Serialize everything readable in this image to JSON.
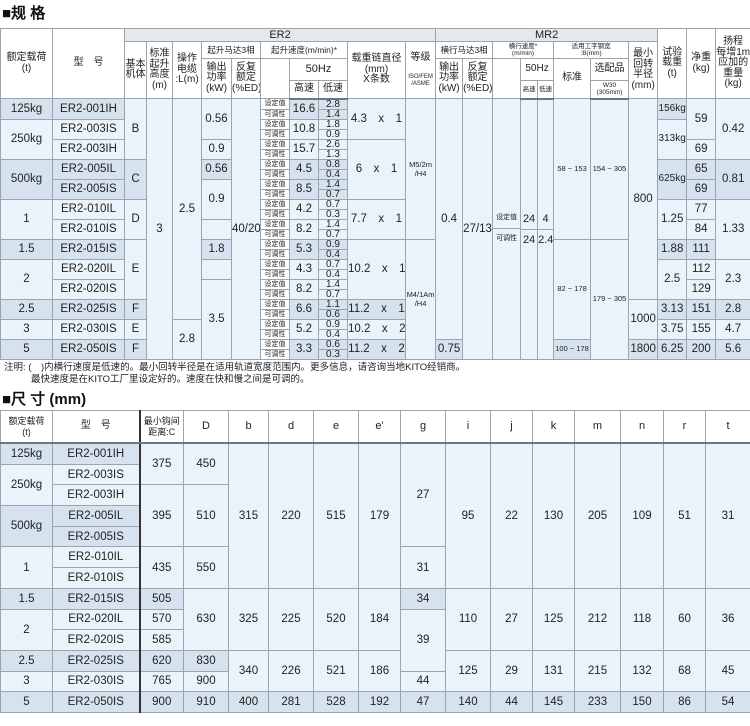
{
  "spec": {
    "title": "■规 格",
    "headers": {
      "capacity": "额定载荷\n(t)",
      "model": "型　号",
      "er2": "ER2",
      "mr2": "MR2",
      "body": "基本\n机体",
      "lift": "标准\n起升\n高度\n(m)",
      "cable": "操作\n电缆\n:L(m)",
      "hoist_motor": "起升马达3相",
      "output": "输出\n功率\n(kW)",
      "duty": "反复\n额定\n(%ED)",
      "hoist_speed": "起升速度(m/min)*",
      "hz": "50Hz",
      "high": "高速",
      "low": "低速",
      "chain": "载重链直径\n(mm)\nX条数",
      "grade": "等级",
      "grade_std": "ISO/FEM\n/ASME",
      "trav_motor": "横行马达3相",
      "trav_speed": "横行速度*\n(m/min)",
      "flange": "适用工字钢宽\n:B(mm)",
      "std": "标准",
      "opt": "选配品",
      "opt_sub": "W30\n(305mm)",
      "radius": "最小\n回转\n半径\n(mm)",
      "test_load": "试验\n载重\n(t)",
      "weight": "净重\n(kg)",
      "per_m": "扬程\n每增1m\n应加的\n重量\n(kg)"
    },
    "speed_labels": [
      "设定值",
      "可调性"
    ],
    "columns": {
      "capacity": [
        "125kg",
        "250kg",
        null,
        "500kg",
        null,
        "1",
        null,
        "1.5",
        "2",
        null,
        "2.5",
        "3",
        "5"
      ],
      "model": [
        "ER2-001IH",
        "ER2-003IS",
        "ER2-003IH",
        "ER2-005IL",
        "ER2-005IS",
        "ER2-010IL",
        "ER2-010IS",
        "ER2-015IS",
        "ER2-020IL",
        "ER2-020IS",
        "ER2-025IS",
        "ER2-030IS",
        "ER2-050IS"
      ],
      "body": [
        "B",
        null,
        null,
        "C",
        null,
        "D",
        null,
        "E",
        null,
        null,
        "F",
        "E",
        "F"
      ],
      "lift_height": [
        "3",
        null,
        null,
        null,
        null,
        null,
        null,
        null,
        null,
        null,
        null,
        null,
        null
      ],
      "cable": [
        "2.5",
        null,
        null,
        null,
        null,
        null,
        null,
        null,
        null,
        null,
        null,
        "2.8",
        null
      ],
      "hoist_power": [
        "0.56",
        null,
        "0.9",
        "0.56",
        "0.9",
        null,
        "",
        "1.8",
        "",
        "3.5",
        null,
        null,
        null
      ],
      "hoist_duty": [
        "40/20",
        null,
        null,
        null,
        null,
        null,
        null,
        null,
        null,
        null,
        null,
        null,
        null
      ],
      "hoist_speed_high": [
        "16.6",
        "10.8",
        "15.7",
        "4.5",
        "8.5",
        "4.2",
        "8.2",
        "5.3",
        "4.3",
        "8.2",
        "6.6",
        "5.2",
        "3.3"
      ],
      "hoist_speed_low_set": [
        "2.8",
        "1.8",
        "2.6",
        "0.8",
        "1.4",
        "0.7",
        "1.4",
        "0.9",
        "0.7",
        "1.4",
        "1.1",
        "0.9",
        "0.6"
      ],
      "hoist_speed_low_adj": [
        "1.4",
        "0.9",
        "1.3",
        "0.4",
        "0.7",
        "0.3",
        "0.7",
        "0.4",
        "0.4",
        "0.7",
        "0.6",
        "0.4",
        "0.3"
      ],
      "chain": [
        "4.3　x　1",
        null,
        "6　x　1",
        null,
        null,
        "7.7　x　1",
        null,
        "10.2　x　1",
        null,
        null,
        "11.2　x　1",
        "10.2　x　2",
        "11.2　x　2"
      ],
      "grade": [
        "M5/2m\n/H4",
        null,
        null,
        null,
        null,
        null,
        null,
        "M4/1Am\n/H4",
        null,
        null,
        null,
        null,
        null
      ],
      "trav_power": [
        "0.4",
        null,
        null,
        null,
        null,
        null,
        null,
        null,
        null,
        null,
        null,
        null,
        "0.75"
      ],
      "trav_duty": [
        "27/13",
        null,
        null,
        null,
        null,
        null,
        null,
        null,
        null,
        null,
        null,
        null,
        null
      ],
      "flange_std": [
        "58 ~ 153",
        null,
        null,
        null,
        null,
        null,
        null,
        "82 ~ 178",
        null,
        null,
        null,
        null,
        "100 ~ 178"
      ],
      "flange_opt": [
        "154 ~ 305",
        null,
        null,
        null,
        null,
        null,
        null,
        "179 ~ 305",
        null,
        null,
        null,
        null,
        null
      ],
      "min_radius": [
        "800",
        null,
        null,
        null,
        null,
        null,
        null,
        null,
        null,
        null,
        "1000",
        null,
        "1800"
      ],
      "test_load": [
        "156kg",
        "313kg",
        null,
        "625kg",
        null,
        "1.25",
        null,
        "1.88",
        "2.5",
        null,
        "3.13",
        "3.75",
        "6.25"
      ],
      "weight": [
        "59",
        null,
        "69",
        "65",
        "69",
        "77",
        "84",
        "111",
        "112",
        "129",
        "151",
        "155",
        "200"
      ],
      "per_m": [
        "0.42",
        null,
        null,
        "0.81",
        null,
        "1.33",
        null,
        null,
        "2.3",
        null,
        "2.8",
        "4.7",
        "5.6"
      ]
    },
    "trav_speed": {
      "set": {
        "label": "设定值",
        "high": "24",
        "low": "4"
      },
      "adj": {
        "label": "可调性",
        "high": "24",
        "low": "2.4"
      }
    }
  },
  "note": {
    "line1": "注明: (　)内横行速度是低速的。最小回转半径是在适用轨道宽度范围内。更多信息，请咨询当地KITO经销商。",
    "line2": "最快速度是在KITO工厂里设定好的。速度在快和慢之间是可调的。"
  },
  "dims": {
    "title": "■尺 寸 (mm)",
    "headers": {
      "capacity": "额定载荷\n(t)",
      "model": "型　号",
      "c": "最小钩间\n距离:C",
      "D": "D",
      "b": "b",
      "d": "d",
      "e": "e",
      "e2": "e'",
      "g": "g",
      "i": "i",
      "j": "j",
      "k": "k",
      "m": "m",
      "n": "n",
      "r": "r",
      "t": "t"
    },
    "columns": {
      "capacity": [
        "125kg",
        "250kg",
        null,
        "500kg",
        null,
        "1",
        null,
        "1.5",
        "2",
        null,
        "2.5",
        "3",
        "5"
      ],
      "model": [
        "ER2-001IH",
        "ER2-003IS",
        "ER2-003IH",
        "ER2-005IL",
        "ER2-005IS",
        "ER2-010IL",
        "ER2-010IS",
        "ER2-015IS",
        "ER2-020IL",
        "ER2-020IS",
        "ER2-025IS",
        "ER2-030IS",
        "ER2-050IS"
      ],
      "c": [
        "375",
        null,
        "395",
        null,
        null,
        "435",
        null,
        "505",
        "570",
        "585",
        "620",
        "765",
        "900"
      ],
      "D": [
        "450",
        null,
        "510",
        null,
        null,
        "550",
        null,
        "630",
        null,
        null,
        "830",
        "900",
        "910"
      ],
      "b": [
        "315",
        null,
        null,
        null,
        null,
        null,
        null,
        "325",
        null,
        null,
        "340",
        null,
        "400"
      ],
      "d": [
        "220",
        null,
        null,
        null,
        null,
        null,
        null,
        "225",
        null,
        null,
        "226",
        null,
        "281"
      ],
      "e": [
        "515",
        null,
        null,
        null,
        null,
        null,
        null,
        "520",
        null,
        null,
        "521",
        null,
        "528"
      ],
      "e2": [
        "179",
        null,
        null,
        null,
        null,
        null,
        null,
        "184",
        null,
        null,
        "186",
        null,
        "192"
      ],
      "g": [
        "27",
        null,
        null,
        null,
        null,
        "31",
        null,
        "34",
        "39",
        null,
        null,
        "44",
        "47"
      ],
      "i": [
        "95",
        null,
        null,
        null,
        null,
        null,
        null,
        "110",
        null,
        null,
        "125",
        null,
        "140"
      ],
      "j": [
        "22",
        null,
        null,
        null,
        null,
        null,
        null,
        "27",
        null,
        null,
        "29",
        null,
        "44"
      ],
      "k": [
        "130",
        null,
        null,
        null,
        null,
        null,
        null,
        "125",
        null,
        null,
        "131",
        null,
        "145"
      ],
      "m": [
        "205",
        null,
        null,
        null,
        null,
        null,
        null,
        "212",
        null,
        null,
        "215",
        null,
        "233"
      ],
      "n": [
        "109",
        null,
        null,
        null,
        null,
        null,
        null,
        "118",
        null,
        null,
        "132",
        null,
        "150"
      ],
      "r": [
        "51",
        null,
        null,
        null,
        null,
        null,
        null,
        "60",
        null,
        null,
        "68",
        null,
        "86"
      ],
      "t": [
        "31",
        null,
        null,
        null,
        null,
        null,
        null,
        "36",
        null,
        null,
        "45",
        null,
        "54"
      ]
    }
  },
  "colors": {
    "band_dark": "#d6e3ee",
    "band_light": "#eaf3fa",
    "border": "#98a6b2",
    "header_top": "#e6e9ec"
  }
}
